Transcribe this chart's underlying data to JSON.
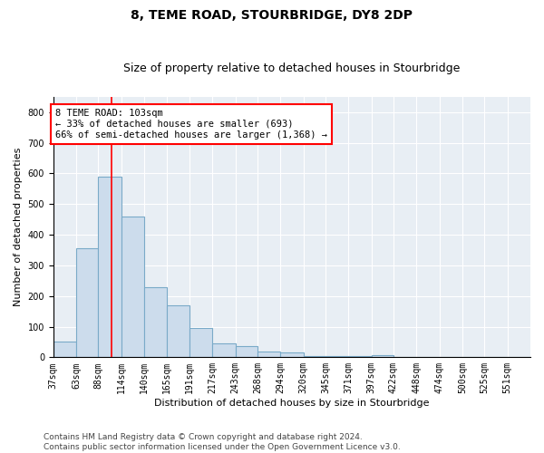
{
  "title": "8, TEME ROAD, STOURBRIDGE, DY8 2DP",
  "subtitle": "Size of property relative to detached houses in Stourbridge",
  "xlabel": "Distribution of detached houses by size in Stourbridge",
  "ylabel": "Number of detached properties",
  "bar_color": "#ccdcec",
  "bar_edge_color": "#7aaac8",
  "background_color": "#e8eef4",
  "grid_color": "#ffffff",
  "annotation_text": "8 TEME ROAD: 103sqm\n← 33% of detached houses are smaller (693)\n66% of semi-detached houses are larger (1,368) →",
  "property_line_x": 103,
  "categories": [
    "37sqm",
    "63sqm",
    "88sqm",
    "114sqm",
    "140sqm",
    "165sqm",
    "191sqm",
    "217sqm",
    "243sqm",
    "268sqm",
    "294sqm",
    "320sqm",
    "345sqm",
    "371sqm",
    "397sqm",
    "422sqm",
    "448sqm",
    "474sqm",
    "500sqm",
    "525sqm",
    "551sqm"
  ],
  "bin_edges": [
    37,
    63,
    88,
    114,
    140,
    165,
    191,
    217,
    243,
    268,
    294,
    320,
    345,
    371,
    397,
    422,
    448,
    474,
    500,
    525,
    551,
    577
  ],
  "values": [
    50,
    355,
    590,
    460,
    230,
    170,
    95,
    45,
    35,
    20,
    15,
    5,
    5,
    3,
    8,
    2,
    2,
    1,
    1,
    1,
    1
  ],
  "ylim": [
    0,
    850
  ],
  "yticks": [
    0,
    100,
    200,
    300,
    400,
    500,
    600,
    700,
    800
  ],
  "footer": "Contains HM Land Registry data © Crown copyright and database right 2024.\nContains public sector information licensed under the Open Government Licence v3.0.",
  "title_fontsize": 10,
  "subtitle_fontsize": 9,
  "xlabel_fontsize": 8,
  "ylabel_fontsize": 8,
  "tick_fontsize": 7,
  "annotation_fontsize": 7.5,
  "footer_fontsize": 6.5
}
